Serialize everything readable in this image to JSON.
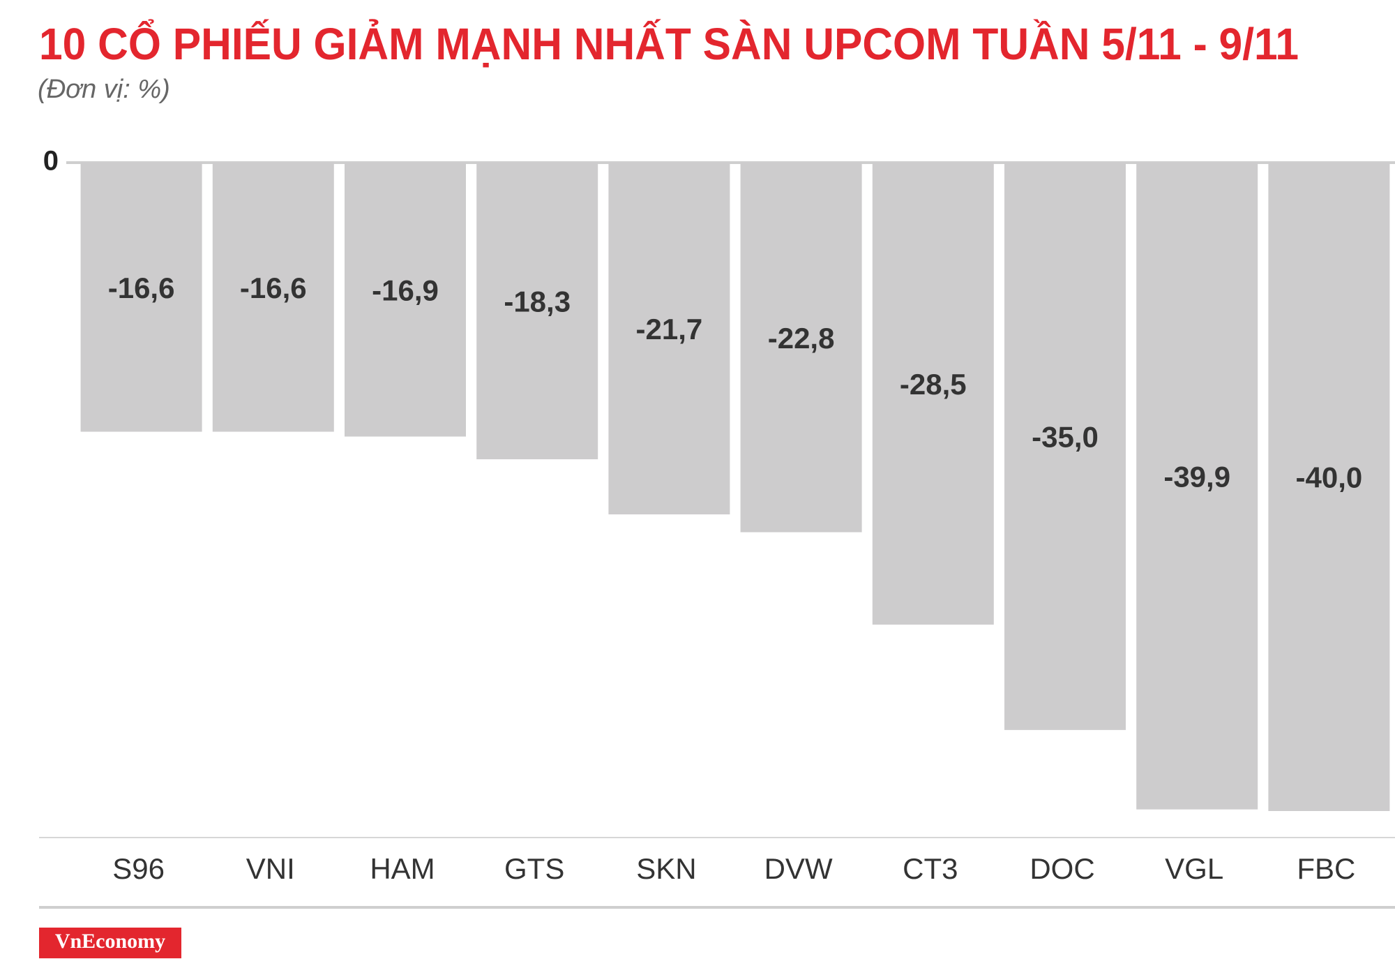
{
  "chart_data": {
    "type": "bar",
    "title": "10 CỔ PHIẾU GIẢM MẠNH NHẤT SÀN UPCOM TUẦN 5/11 - 9/11",
    "subtitle": "(Đơn vị: %)",
    "categories": [
      "S96",
      "VNI",
      "HAM",
      "GTS",
      "SKN",
      "DVW",
      "CT3",
      "DOC",
      "VGL",
      "FBC"
    ],
    "values": [
      -16.6,
      -16.6,
      -16.9,
      -18.3,
      -21.7,
      -22.8,
      -28.5,
      -35.0,
      -39.9,
      -40.0
    ],
    "value_labels": [
      "-16,6",
      "-16,6",
      "-16,9",
      "-18,3",
      "-21,7",
      "-22,8",
      "-28,5",
      "-35,0",
      "-39,9",
      "-40,0"
    ],
    "color": "#cdcccd",
    "ylim": [
      -40,
      0
    ],
    "yticks": [
      0
    ],
    "source": "VnEconomy"
  }
}
